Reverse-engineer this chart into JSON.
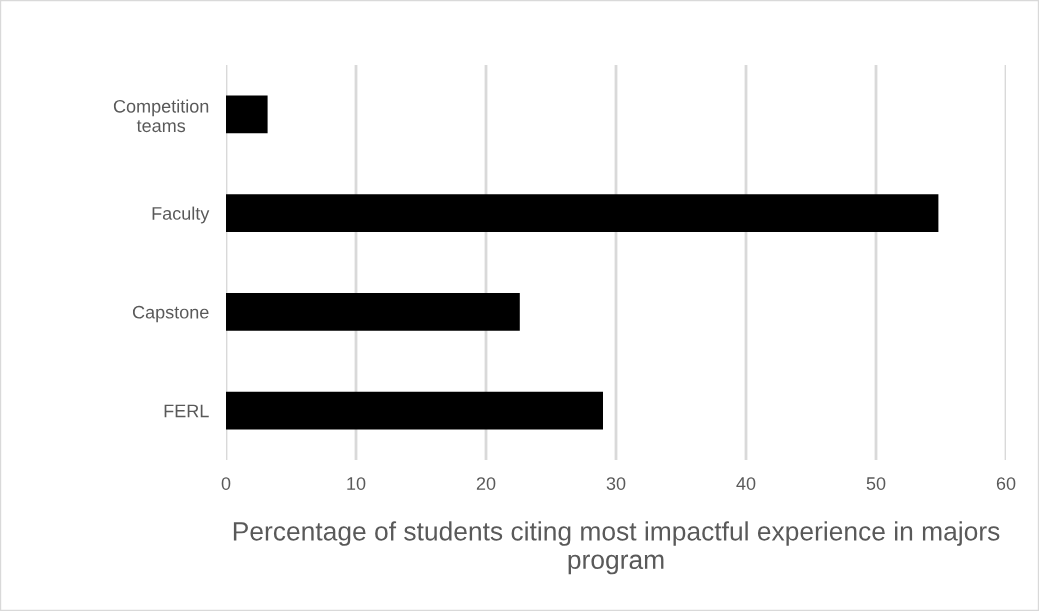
{
  "chart_data": {
    "type": "bar",
    "orientation": "horizontal",
    "xlabel": "Percentage of students citing most impactful experience in majors program",
    "categories": [
      "Competition teams",
      "Faculty",
      "Capstone",
      "FERL"
    ],
    "values": [
      3.2,
      54.8,
      22.6,
      29.0
    ],
    "color": "#000000",
    "xlim": [
      0,
      60
    ],
    "xticks": [
      0,
      10,
      20,
      30,
      40,
      50,
      60
    ],
    "grid": "x",
    "legend": false
  }
}
